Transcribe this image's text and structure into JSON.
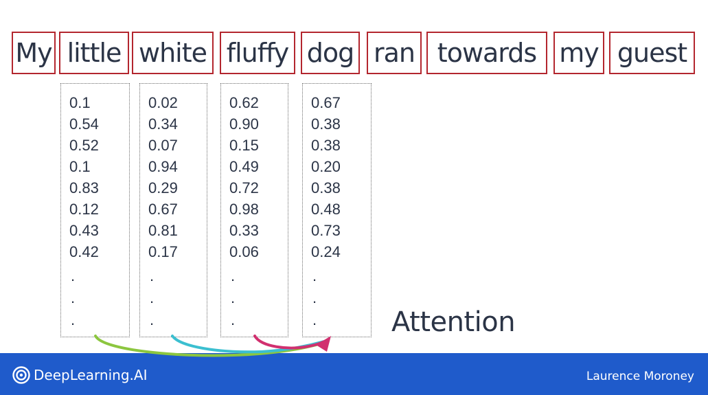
{
  "sentence": {
    "words": [
      "My",
      "little",
      "white",
      "fluffy",
      "dog",
      "ran",
      "towards",
      "my",
      "guest"
    ]
  },
  "vectors": [
    {
      "word": "My",
      "values": [
        "0.1",
        "0.54",
        "0.52",
        "0.1",
        "0.83",
        "0.12",
        "0.43",
        "0.42"
      ],
      "ellipsis": [
        ".",
        ".",
        "."
      ]
    },
    {
      "word": "little",
      "values": [
        "0.02",
        "0.34",
        "0.07",
        "0.94",
        "0.29",
        "0.67",
        "0.81",
        "0.17"
      ],
      "ellipsis": [
        ".",
        ".",
        "."
      ]
    },
    {
      "word": "white",
      "values": [
        "0.62",
        "0.90",
        "0.15",
        "0.49",
        "0.72",
        "0.98",
        "0.33",
        "0.06"
      ],
      "ellipsis": [
        ".",
        ".",
        "."
      ]
    },
    {
      "word": "fluffy",
      "values": [
        "0.67",
        "0.38",
        "0.38",
        "0.20",
        "0.38",
        "0.48",
        "0.73",
        "0.24"
      ],
      "ellipsis": [
        ".",
        ".",
        "."
      ]
    }
  ],
  "heading": "Attention",
  "arrows": [
    {
      "from_column": 0,
      "to_column": 3,
      "color": "#8cc63f"
    },
    {
      "from_column": 1,
      "to_column": 3,
      "color": "#3bbfd0"
    },
    {
      "from_column": 2,
      "to_column": 3,
      "color": "#d1306f"
    }
  ],
  "footer": {
    "brand": "DeepLearning.AI",
    "presenter": "Laurence Moroney",
    "background_color": "#1f5bcb"
  },
  "colors": {
    "text": "#2b3446",
    "word_box_border": "#b3262e"
  }
}
